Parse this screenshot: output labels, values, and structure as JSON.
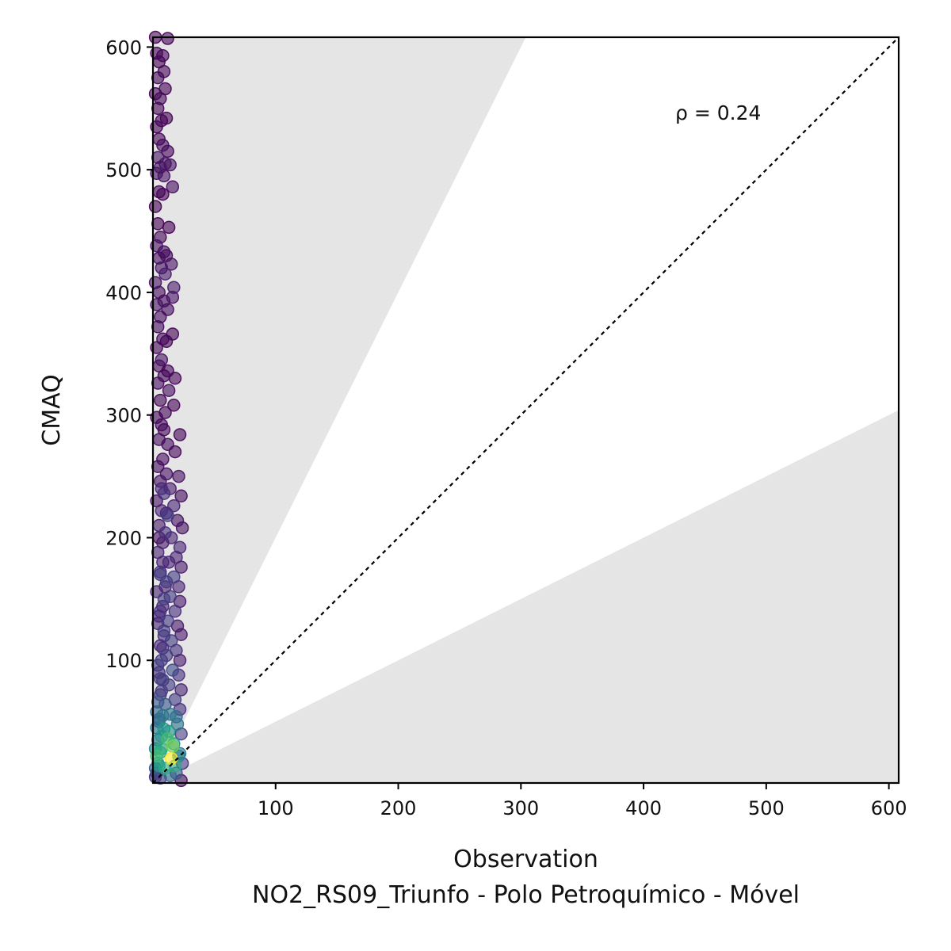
{
  "chart_data": {
    "type": "scatter",
    "title": "",
    "xlabel": "Observation",
    "xlabel_secondary": "NO2_RS09_Triunfo - Polo Petroquímico - Móvel",
    "ylabel": "CMAQ",
    "xlim": [
      0,
      608
    ],
    "ylim": [
      0,
      608
    ],
    "xticks": [
      100,
      200,
      300,
      400,
      500,
      600
    ],
    "yticks": [
      100,
      200,
      300,
      400,
      500,
      600
    ],
    "annotation": "ρ = 0.24",
    "reference_line": "1:1",
    "shaded_band": {
      "upper_slope": 2.0,
      "lower_slope": 0.5,
      "color": "#e5e5e5"
    },
    "colormap": "viridis",
    "marker_alpha": 0.6,
    "grid": false,
    "points": [
      [
        2,
        608
      ],
      [
        12,
        607
      ],
      [
        3,
        595
      ],
      [
        8,
        593
      ],
      [
        5,
        588
      ],
      [
        9,
        580
      ],
      [
        4,
        575
      ],
      [
        10,
        566
      ],
      [
        2,
        562
      ],
      [
        6,
        558
      ],
      [
        4,
        550
      ],
      [
        11,
        542
      ],
      [
        7,
        540
      ],
      [
        3,
        535
      ],
      [
        5,
        525
      ],
      [
        8,
        520
      ],
      [
        12,
        515
      ],
      [
        4,
        510
      ],
      [
        10,
        505
      ],
      [
        14,
        504
      ],
      [
        6,
        502
      ],
      [
        3,
        497
      ],
      [
        9,
        495
      ],
      [
        16,
        486
      ],
      [
        5,
        482
      ],
      [
        8,
        480
      ],
      [
        2,
        470
      ],
      [
        4,
        456
      ],
      [
        13,
        453
      ],
      [
        6,
        445
      ],
      [
        3,
        438
      ],
      [
        9,
        433
      ],
      [
        11,
        430
      ],
      [
        5,
        428
      ],
      [
        15,
        423
      ],
      [
        7,
        420
      ],
      [
        10,
        415
      ],
      [
        2,
        408
      ],
      [
        17,
        404
      ],
      [
        5,
        400
      ],
      [
        16,
        396
      ],
      [
        9,
        393
      ],
      [
        3,
        390
      ],
      [
        12,
        386
      ],
      [
        6,
        380
      ],
      [
        4,
        372
      ],
      [
        16,
        366
      ],
      [
        8,
        362
      ],
      [
        11,
        360
      ],
      [
        3,
        355
      ],
      [
        7,
        345
      ],
      [
        5,
        340
      ],
      [
        12,
        336
      ],
      [
        9,
        332
      ],
      [
        18,
        330
      ],
      [
        4,
        326
      ],
      [
        13,
        320
      ],
      [
        6,
        312
      ],
      [
        17,
        308
      ],
      [
        10,
        302
      ],
      [
        3,
        298
      ],
      [
        7,
        292
      ],
      [
        9,
        288
      ],
      [
        22,
        284
      ],
      [
        5,
        280
      ],
      [
        12,
        276
      ],
      [
        18,
        270
      ],
      [
        8,
        264
      ],
      [
        4,
        258
      ],
      [
        11,
        252
      ],
      [
        21,
        250
      ],
      [
        6,
        246
      ],
      [
        14,
        240
      ],
      [
        9,
        236
      ],
      [
        23,
        234
      ],
      [
        3,
        230
      ],
      [
        17,
        226
      ],
      [
        7,
        222
      ],
      [
        12,
        218
      ],
      [
        20,
        214
      ],
      [
        5,
        210
      ],
      [
        24,
        208
      ],
      [
        10,
        204
      ],
      [
        15,
        200
      ],
      [
        8,
        196
      ],
      [
        22,
        192
      ],
      [
        4,
        188
      ],
      [
        19,
        184
      ],
      [
        13,
        180
      ],
      [
        23,
        176
      ],
      [
        6,
        172
      ],
      [
        17,
        168
      ],
      [
        11,
        164
      ],
      [
        21,
        160
      ],
      [
        3,
        156
      ],
      [
        14,
        152
      ],
      [
        22,
        148
      ],
      [
        8,
        144
      ],
      [
        18,
        140
      ],
      [
        5,
        136
      ],
      [
        12,
        132
      ],
      [
        20,
        128
      ],
      [
        9,
        124
      ],
      [
        23,
        121
      ],
      [
        15,
        116
      ],
      [
        6,
        112
      ],
      [
        19,
        108
      ],
      [
        11,
        104
      ],
      [
        22,
        100
      ],
      [
        4,
        96
      ],
      [
        16,
        92
      ],
      [
        21,
        88
      ],
      [
        8,
        84
      ],
      [
        13,
        80
      ],
      [
        23,
        76
      ],
      [
        6,
        72
      ],
      [
        18,
        68
      ],
      [
        10,
        64
      ],
      [
        22,
        60
      ],
      [
        14,
        56
      ],
      [
        5,
        52
      ],
      [
        20,
        48
      ],
      [
        9,
        44
      ],
      [
        23,
        40
      ],
      [
        12,
        36
      ],
      [
        17,
        32
      ],
      [
        7,
        28
      ],
      [
        22,
        24
      ],
      [
        15,
        20
      ],
      [
        24,
        16
      ],
      [
        10,
        12
      ],
      [
        19,
        8
      ],
      [
        6,
        4
      ],
      [
        23,
        2
      ],
      [
        14,
        6
      ],
      [
        18,
        14
      ],
      [
        21,
        22
      ],
      [
        16,
        30
      ],
      [
        13,
        42
      ],
      [
        19,
        54
      ],
      [
        7,
        100
      ],
      [
        9,
        120
      ],
      [
        6,
        140
      ],
      [
        10,
        160
      ],
      [
        8,
        180
      ],
      [
        5,
        200
      ],
      [
        11,
        220
      ],
      [
        7,
        240
      ],
      [
        9,
        150
      ],
      [
        6,
        170
      ],
      [
        4,
        130
      ],
      [
        8,
        110
      ],
      [
        5,
        90
      ],
      [
        7,
        75
      ],
      [
        4,
        66
      ],
      [
        3,
        58
      ],
      [
        5,
        50
      ],
      [
        3,
        45
      ],
      [
        4,
        35
      ],
      [
        2,
        28
      ],
      [
        3,
        22
      ],
      [
        4,
        16
      ],
      [
        2,
        12
      ],
      [
        3,
        8
      ],
      [
        2,
        5
      ],
      [
        5,
        14
      ],
      [
        6,
        25
      ],
      [
        7,
        38
      ],
      [
        8,
        55
      ],
      [
        6,
        85
      ]
    ]
  }
}
